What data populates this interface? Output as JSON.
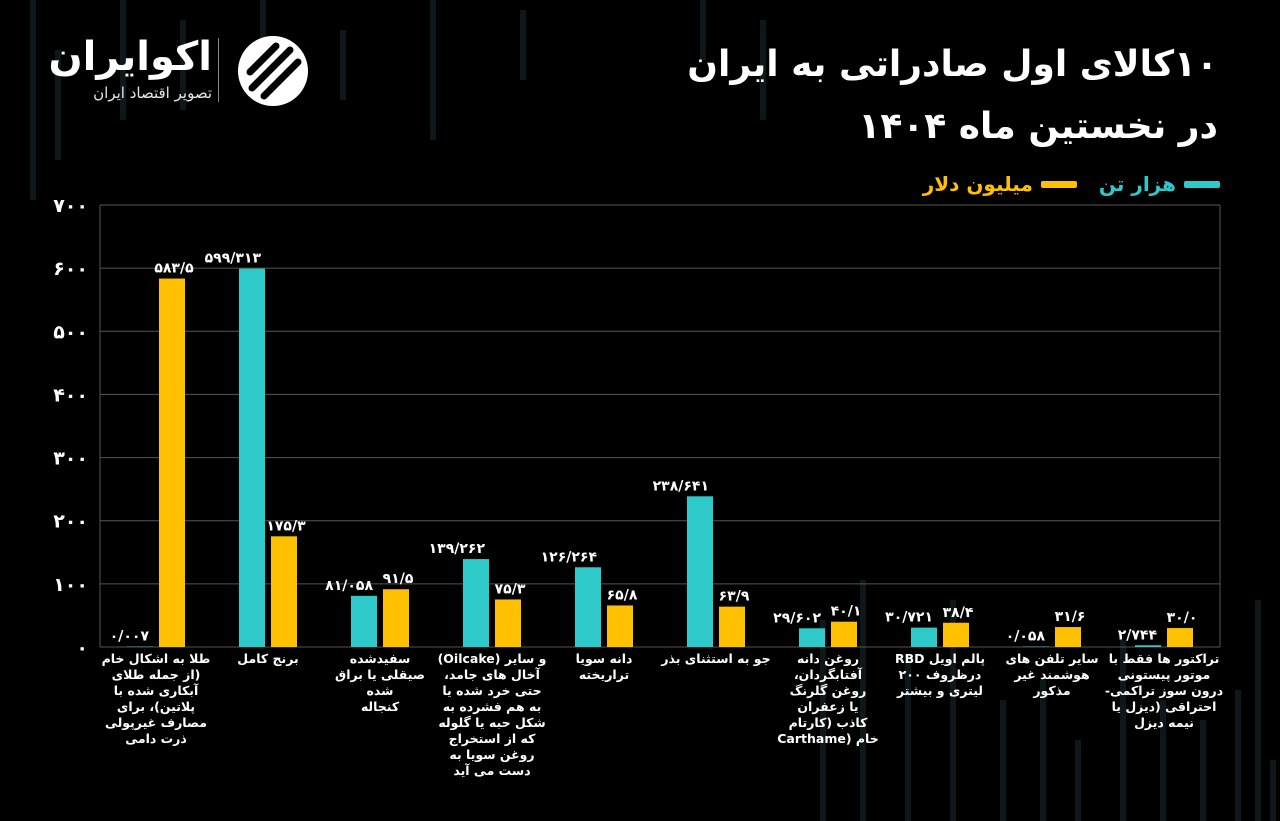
{
  "brand": {
    "name": "اکوایران",
    "tagline": "تصویر اقتصاد ایران"
  },
  "title": {
    "line1": "۱۰کالای اول صادراتی به ایران",
    "line2": "در نخستین ماه ۱۴۰۴"
  },
  "colors": {
    "tons": "#2ec9c9",
    "dollars": "#ffc000",
    "grid": "#555555",
    "background": "#000000"
  },
  "chart_data": {
    "type": "bar",
    "title": "۱۰کالای اول صادراتی به ایران در نخستین ماه ۱۴۰۴",
    "ylim": [
      0,
      700
    ],
    "yticks": [
      0,
      100,
      200,
      300,
      400,
      500,
      600,
      700
    ],
    "ytick_labels": [
      "۰",
      "۱۰۰",
      "۲۰۰",
      "۳۰۰",
      "۴۰۰",
      "۵۰۰",
      "۶۰۰",
      "۷۰۰"
    ],
    "grid": true,
    "legend_position": "top-right",
    "categories": [
      [
        "طلا به اشکال خام",
        "(از جمله طلای",
        "آبکاری شده با",
        "پلاتین)، برای",
        "مصارف غیرپولی",
        "ذرت دامی"
      ],
      [
        "برنج کامل"
      ],
      [
        "سفیدشده",
        "صیقلی یا براق",
        "شده",
        "کنجاله"
      ],
      [
        "و سایر (Oilcake)",
        "آخال های جامد،",
        "حتی خرد شده یا",
        "به هم فشرده به",
        "شکل حبه یا گلوله",
        "که از استخراج",
        "روغن سویا به",
        "دست می آید"
      ],
      [
        "دانه سویا",
        "تراریخته"
      ],
      [
        "جو به استثنای بذر"
      ],
      [
        "روغن دانه",
        "آفتابگردان،",
        "روغن گلرنگ",
        "یا زعفران",
        "کاذب (کارتام",
        "خام (Carthame"
      ],
      [
        "پالم اویل RBD",
        "درظروف ۲۰۰",
        "لیتری و بیشتر"
      ],
      [
        "سایر تلفن های",
        "هوشمند غیر",
        "مذکور"
      ],
      [
        "تراکتور ها فقط با",
        "موتور پیستونی",
        "درون سوز تراکمی-",
        "احتراقی (دیزل یا",
        "نیمه دیزل"
      ]
    ],
    "series": [
      {
        "name": "هزار تن",
        "color": "#2ec9c9",
        "values": [
          0.007,
          599.313,
          81.058,
          139.262,
          126.264,
          238.641,
          29.602,
          30.721,
          0.058,
          2.744
        ],
        "labels": [
          "۰/۰۰۷",
          "۵۹۹/۳۱۳",
          "۸۱/۰۵۸",
          "۱۳۹/۲۶۲",
          "۱۲۶/۲۶۴",
          "۲۳۸/۶۴۱",
          "۲۹/۶۰۲",
          "۳۰/۷۲۱",
          "۰/۰۵۸",
          "۲/۷۴۴"
        ]
      },
      {
        "name": "میلیون دلار",
        "color": "#ffc000",
        "values": [
          583.5,
          175.3,
          91.5,
          75.3,
          65.8,
          63.9,
          40.1,
          38.4,
          31.6,
          30.0
        ],
        "labels": [
          "۵۸۳/۵",
          "۱۷۵/۳",
          "۹۱/۵",
          "۷۵/۳",
          "۶۵/۸",
          "۶۳/۹",
          "۴۰/۱",
          "۳۸/۴",
          "۳۱/۶",
          "۳۰/۰"
        ]
      }
    ]
  }
}
